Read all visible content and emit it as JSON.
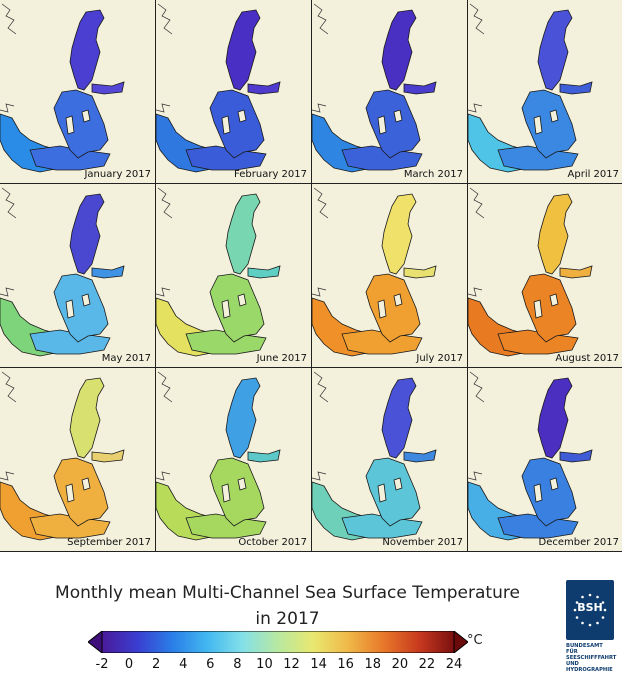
{
  "panels": [
    {
      "label": "January 2017",
      "gulf_color": "#4a3fd0",
      "north_color": "#5548d6",
      "south_color": "#3c6ee0",
      "west_color": "#2a8ce6"
    },
    {
      "label": "February 2017",
      "gulf_color": "#4a2fc4",
      "north_color": "#4f3ccf",
      "south_color": "#3a5cd8",
      "west_color": "#2f78e0"
    },
    {
      "label": "March 2017",
      "gulf_color": "#4a30c2",
      "north_color": "#4b3ecf",
      "south_color": "#3c62da",
      "west_color": "#2e86e2"
    },
    {
      "label": "April 2017",
      "gulf_color": "#4a52d8",
      "north_color": "#3f5fd9",
      "south_color": "#3a88e2",
      "west_color": "#4fc4e6"
    },
    {
      "label": "May 2017",
      "gulf_color": "#4a48d0",
      "north_color": "#3f92e4",
      "south_color": "#5ab8e8",
      "west_color": "#7ed47a"
    },
    {
      "label": "June 2017",
      "gulf_color": "#78d6b0",
      "north_color": "#5fcfc4",
      "south_color": "#9ad86a",
      "west_color": "#e4e060"
    },
    {
      "label": "July 2017",
      "gulf_color": "#f0e16a",
      "north_color": "#e8e070",
      "south_color": "#f0a030",
      "west_color": "#f09028"
    },
    {
      "label": "August 2017",
      "gulf_color": "#f0c040",
      "north_color": "#f0b040",
      "south_color": "#ea8424",
      "west_color": "#e87a22"
    },
    {
      "label": "September 2017",
      "gulf_color": "#d8e070",
      "north_color": "#e8d070",
      "south_color": "#f0b040",
      "west_color": "#f0a030"
    },
    {
      "label": "October 2017",
      "gulf_color": "#3fa0e4",
      "north_color": "#5cc8c8",
      "south_color": "#a6d860",
      "west_color": "#b8dc5a"
    },
    {
      "label": "November 2017",
      "gulf_color": "#4a52d8",
      "north_color": "#3f88e0",
      "south_color": "#5cc6d8",
      "west_color": "#6ed0b8"
    },
    {
      "label": "December 2017",
      "gulf_color": "#4a2fc0",
      "north_color": "#3f5cd6",
      "south_color": "#3a80e0",
      "west_color": "#48aee6"
    }
  ],
  "title_line1": "Monthly mean Multi-Channel Sea Surface Temperature",
  "title_line2": "in 2017",
  "colorbar": {
    "unit": "°C",
    "ticks": [
      "-2",
      "0",
      "2",
      "4",
      "6",
      "8",
      "10",
      "12",
      "14",
      "16",
      "18",
      "20",
      "22",
      "24"
    ],
    "min": -2,
    "max": 24,
    "stops": [
      "#4a1a9a",
      "#3a3ed0",
      "#2a7ee8",
      "#43b8f0",
      "#84e0e8",
      "#b8e8a0",
      "#e8e870",
      "#f0b848",
      "#e8782a",
      "#c83a1e",
      "#7a1010"
    ]
  },
  "logo": {
    "mark": "BSH",
    "text": [
      "BUNDESAMT FÜR",
      "SEESCHIFFFAHRT",
      "UND",
      "HYDROGRAPHIE"
    ]
  }
}
